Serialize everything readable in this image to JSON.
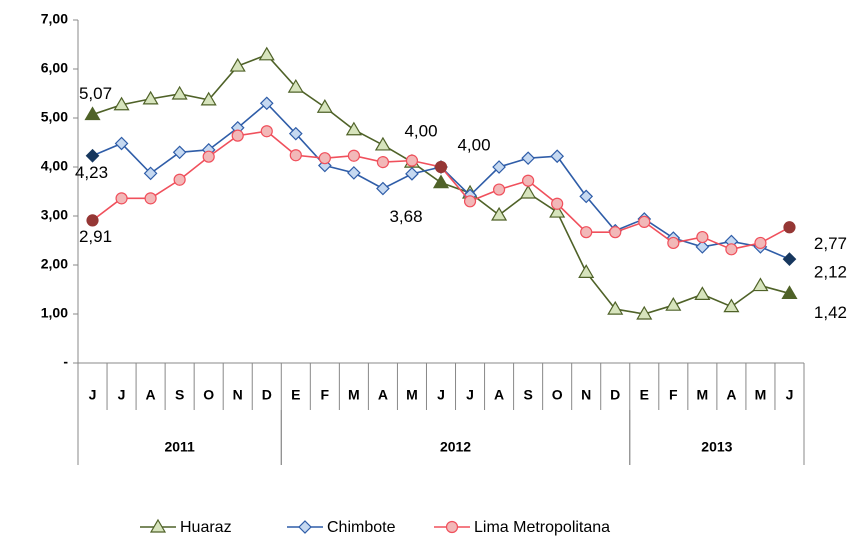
{
  "chart_data": {
    "type": "line",
    "categories": [
      "J",
      "J",
      "A",
      "S",
      "O",
      "N",
      "D",
      "E",
      "F",
      "M",
      "A",
      "M",
      "J",
      "J",
      "A",
      "S",
      "O",
      "N",
      "D",
      "E",
      "F",
      "M",
      "A",
      "M",
      "J"
    ],
    "year_groups": [
      {
        "label": "2011",
        "start": 0,
        "end": 6
      },
      {
        "label": "2012",
        "start": 7,
        "end": 18
      },
      {
        "label": "2013",
        "start": 19,
        "end": 24
      }
    ],
    "series": [
      {
        "name": "Huaraz",
        "color": "#4f6228",
        "marker": "triangle",
        "marker_fill": "#d7e4bd",
        "values": [
          5.07,
          5.27,
          5.39,
          5.49,
          5.37,
          6.06,
          6.29,
          5.63,
          5.22,
          4.76,
          4.45,
          4.1,
          3.68,
          3.47,
          3.02,
          3.47,
          3.08,
          1.85,
          1.1,
          1.0,
          1.18,
          1.4,
          1.15,
          1.58,
          1.42
        ],
        "value_labels": [
          "5,07",
          null,
          null,
          null,
          null,
          null,
          null,
          null,
          null,
          null,
          null,
          null,
          "3,68",
          null,
          null,
          null,
          null,
          null,
          null,
          null,
          null,
          null,
          null,
          null,
          "1,42"
        ]
      },
      {
        "name": "Chimbote",
        "color": "#2f5da8",
        "marker": "diamond",
        "marker_fill": "#c6d9f1",
        "values": [
          4.23,
          4.48,
          3.87,
          4.3,
          4.35,
          4.8,
          5.3,
          4.68,
          4.03,
          3.88,
          3.56,
          3.86,
          4.0,
          3.42,
          4.0,
          4.18,
          4.22,
          3.4,
          2.7,
          2.94,
          2.55,
          2.37,
          2.48,
          2.37,
          2.12
        ],
        "value_labels": [
          "4,23",
          null,
          null,
          null,
          null,
          null,
          null,
          null,
          null,
          null,
          null,
          null,
          "4,00",
          null,
          null,
          null,
          null,
          null,
          null,
          null,
          null,
          null,
          null,
          null,
          "2,12"
        ]
      },
      {
        "name": "Lima Metropolitana",
        "color": "#f0505c",
        "marker": "circle",
        "marker_fill": "#f2b8b8",
        "values": [
          2.91,
          3.36,
          3.36,
          3.74,
          4.21,
          4.64,
          4.73,
          4.24,
          4.18,
          4.23,
          4.1,
          4.13,
          4.0,
          3.3,
          3.54,
          3.72,
          3.25,
          2.67,
          2.67,
          2.88,
          2.45,
          2.57,
          2.32,
          2.45,
          2.77
        ],
        "value_labels": [
          "2,91",
          null,
          null,
          null,
          null,
          null,
          null,
          null,
          null,
          null,
          null,
          null,
          "4,00",
          null,
          null,
          null,
          null,
          null,
          null,
          null,
          null,
          null,
          null,
          null,
          "2,77"
        ]
      }
    ],
    "ylim": [
      0,
      7
    ],
    "yticks": [
      {
        "value": 0,
        "label": "-"
      },
      {
        "value": 1,
        "label": "1,00"
      },
      {
        "value": 2,
        "label": "2,00"
      },
      {
        "value": 3,
        "label": "3,00"
      },
      {
        "value": 4,
        "label": "4,00"
      },
      {
        "value": 5,
        "label": "5,00"
      },
      {
        "value": 6,
        "label": "6,00"
      },
      {
        "value": 7,
        "label": "7,00"
      }
    ],
    "grid": false,
    "legend": "bottom"
  }
}
